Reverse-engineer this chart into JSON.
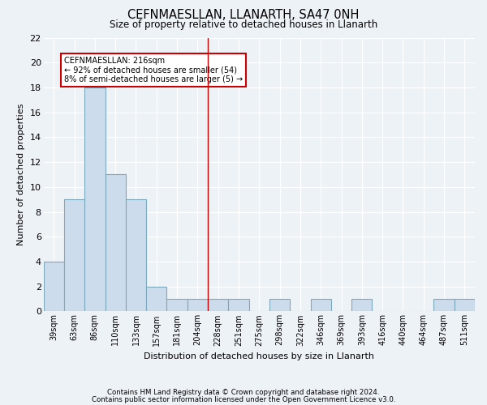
{
  "title": "CEFNMAESLLAN, LLANARTH, SA47 0NH",
  "subtitle": "Size of property relative to detached houses in Llanarth",
  "xlabel": "Distribution of detached houses by size in Llanarth",
  "ylabel": "Number of detached properties",
  "categories": [
    "39sqm",
    "63sqm",
    "86sqm",
    "110sqm",
    "133sqm",
    "157sqm",
    "181sqm",
    "204sqm",
    "228sqm",
    "251sqm",
    "275sqm",
    "298sqm",
    "322sqm",
    "346sqm",
    "369sqm",
    "393sqm",
    "416sqm",
    "440sqm",
    "464sqm",
    "487sqm",
    "511sqm"
  ],
  "values": [
    4,
    9,
    18,
    11,
    9,
    2,
    1,
    1,
    1,
    1,
    0,
    1,
    0,
    1,
    0,
    1,
    0,
    0,
    0,
    1,
    1
  ],
  "bar_color": "#ccdcec",
  "bar_edge_color": "#7aaabb",
  "ylim": [
    0,
    22
  ],
  "yticks": [
    0,
    2,
    4,
    6,
    8,
    10,
    12,
    14,
    16,
    18,
    20,
    22
  ],
  "property_line_x": 7.5,
  "property_line_color": "#cc0000",
  "annotation_text": "CEFNMAESLLAN: 216sqm\n← 92% of detached houses are smaller (54)\n8% of semi-detached houses are larger (5) →",
  "annotation_box_color": "#ffffff",
  "annotation_box_edge_color": "#cc0000",
  "footnote1": "Contains HM Land Registry data © Crown copyright and database right 2024.",
  "footnote2": "Contains public sector information licensed under the Open Government Licence v3.0.",
  "background_color": "#edf2f7",
  "grid_color": "#ffffff"
}
